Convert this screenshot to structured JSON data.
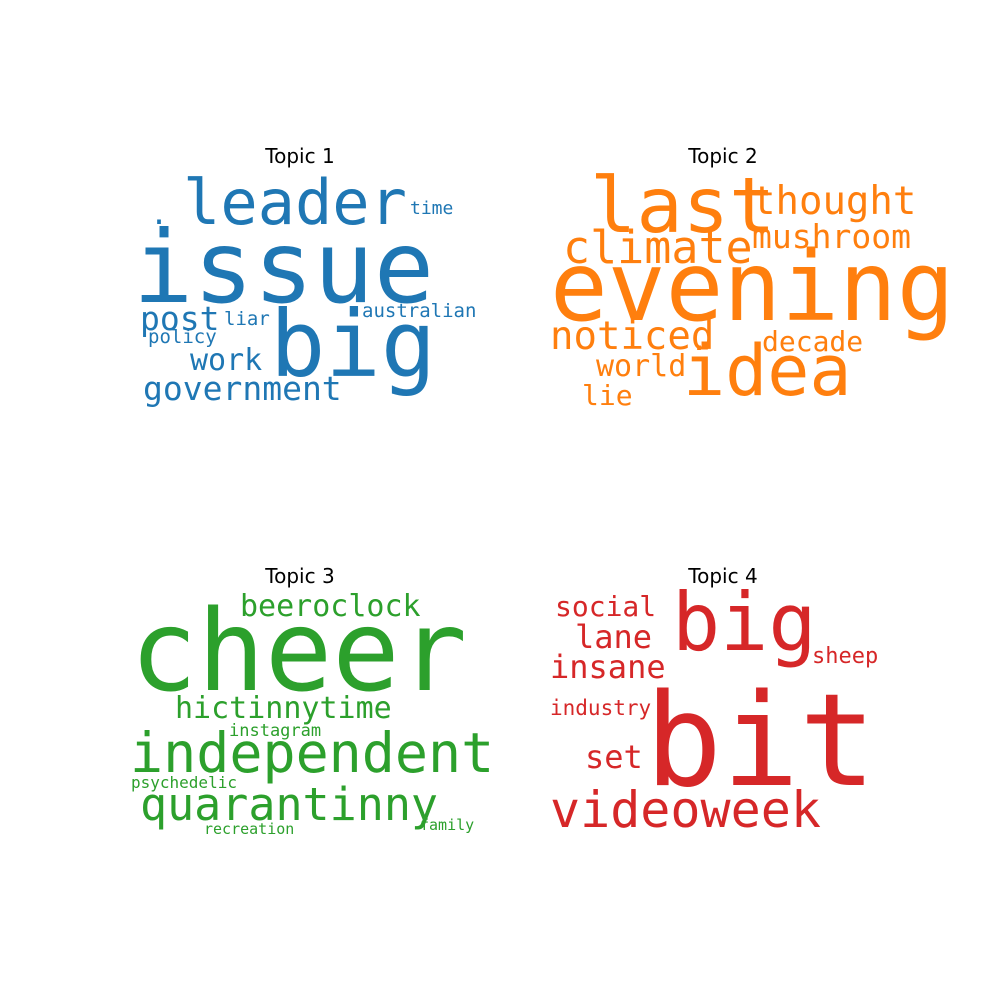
{
  "chart_data": {
    "type": "wordcloud",
    "panels": [
      {
        "title": "Topic 1",
        "color": "#1f77b4",
        "words": [
          {
            "text": "issue",
            "weight": 1.0
          },
          {
            "text": "big",
            "weight": 0.92
          },
          {
            "text": "leader",
            "weight": 0.62
          },
          {
            "text": "post",
            "weight": 0.33
          },
          {
            "text": "work",
            "weight": 0.3
          },
          {
            "text": "government",
            "weight": 0.33
          },
          {
            "text": "australian",
            "weight": 0.19
          },
          {
            "text": "time",
            "weight": 0.18
          },
          {
            "text": "liar",
            "weight": 0.19
          },
          {
            "text": "policy",
            "weight": 0.19
          },
          {
            "text": ".",
            "weight": 0.3
          }
        ]
      },
      {
        "title": "Topic 2",
        "color": "#ff7f0e",
        "words": [
          {
            "text": "evening",
            "weight": 1.0
          },
          {
            "text": "idea",
            "weight": 0.74
          },
          {
            "text": "last",
            "weight": 0.8
          },
          {
            "text": "climate",
            "weight": 0.45
          },
          {
            "text": "thought",
            "weight": 0.39
          },
          {
            "text": "mushroom",
            "weight": 0.33
          },
          {
            "text": "noticed",
            "weight": 0.39
          },
          {
            "text": "decade",
            "weight": 0.28
          },
          {
            "text": "world",
            "weight": 0.3
          },
          {
            "text": "lie",
            "weight": 0.28
          },
          {
            "text": ".",
            "weight": 0.3
          }
        ]
      },
      {
        "title": "Topic 3",
        "color": "#2ca02c",
        "words": [
          {
            "text": "cheer",
            "weight": 1.0
          },
          {
            "text": "independent",
            "weight": 0.55
          },
          {
            "text": "quarantinny",
            "weight": 0.45
          },
          {
            "text": "hictinnytime",
            "weight": 0.3
          },
          {
            "text": "beeroclock",
            "weight": 0.3
          },
          {
            "text": "instagram",
            "weight": 0.17
          },
          {
            "text": "psychedelic",
            "weight": 0.16
          },
          {
            "text": "recreation",
            "weight": 0.15
          },
          {
            "text": "family",
            "weight": 0.15
          }
        ]
      },
      {
        "title": "Topic 4",
        "color": "#d62728",
        "words": [
          {
            "text": "bit",
            "weight": 1.0
          },
          {
            "text": "big",
            "weight": 0.7
          },
          {
            "text": "videoweek",
            "weight": 0.42
          },
          {
            "text": "insane",
            "weight": 0.28
          },
          {
            "text": "lane",
            "weight": 0.28
          },
          {
            "text": "set",
            "weight": 0.28
          },
          {
            "text": "social",
            "weight": 0.22
          },
          {
            "text": "sheep",
            "weight": 0.18
          },
          {
            "text": "industry",
            "weight": 0.18
          }
        ]
      }
    ]
  }
}
